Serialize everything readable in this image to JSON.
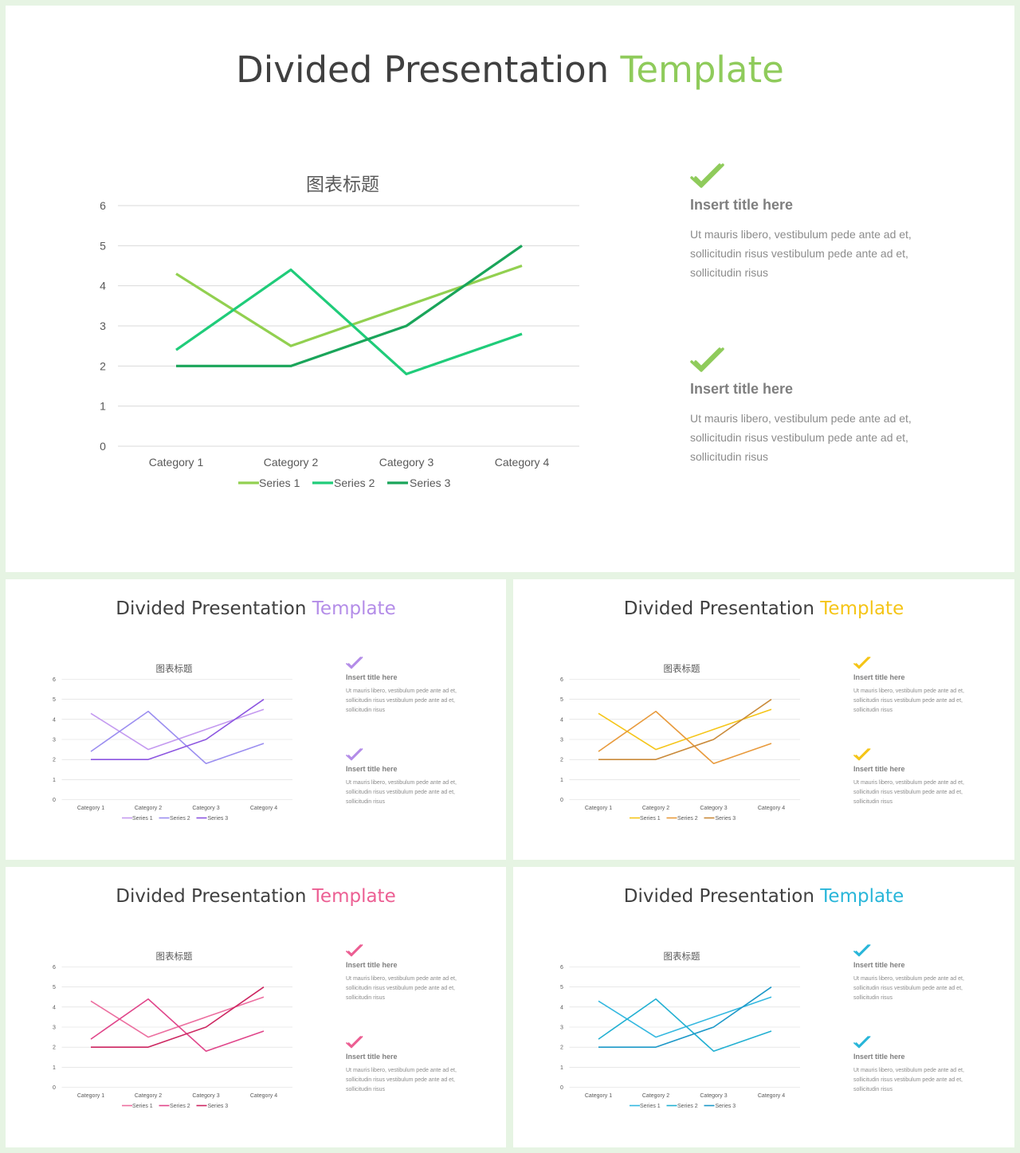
{
  "slides": [
    {
      "title_main": "Divided Presentation ",
      "title_accent": "Template",
      "accent": "#8fcb5b",
      "series_colors": [
        "#92d050",
        "#20cc7a",
        "#1aa55a"
      ],
      "check_color": "#8fcb5b",
      "features": [
        {
          "title": "Insert title here",
          "text": "Ut mauris libero, vestibulum pede ante ad et, sollicitudin risus vestibulum pede ante ad et, sollicitudin risus"
        },
        {
          "title": "Insert title here",
          "text": "Ut mauris libero, vestibulum pede ante ad et, sollicitudin risus vestibulum pede ante ad et, sollicitudin risus"
        }
      ]
    },
    {
      "title_main": "Divided Presentation ",
      "title_accent": "Template",
      "accent": "#b48de8",
      "series_colors": [
        "#c49af0",
        "#9b8ef0",
        "#8c55e0"
      ],
      "check_color": "#b48de8",
      "features": [
        {
          "title": "Insert title here",
          "text": "Ut mauris libero, vestibulum pede ante ad et, sollicitudin risus vestibulum pede ante ad et, sollicitudin risus"
        },
        {
          "title": "Insert title here",
          "text": "Ut mauris libero, vestibulum pede ante ad et, sollicitudin risus vestibulum pede ante ad et, sollicitudin risus"
        }
      ]
    },
    {
      "title_main": "Divided Presentation ",
      "title_accent": "Template",
      "accent": "#f5c518",
      "series_colors": [
        "#f5c518",
        "#e89a3c",
        "#c98a3a"
      ],
      "check_color": "#f5c518",
      "features": [
        {
          "title": "Insert title here",
          "text": "Ut mauris libero, vestibulum pede ante ad et, sollicitudin risus vestibulum pede ante ad et, sollicitudin risus"
        },
        {
          "title": "Insert title here",
          "text": "Ut mauris libero, vestibulum pede ante ad et, sollicitudin risus vestibulum pede ante ad et, sollicitudin risus"
        }
      ]
    },
    {
      "title_main": "Divided Presentation ",
      "title_accent": "Template",
      "accent": "#ec5f93",
      "series_colors": [
        "#ec6fa0",
        "#e0458a",
        "#cc2560"
      ],
      "check_color": "#ec5f93",
      "features": [
        {
          "title": "Insert title here",
          "text": "Ut mauris libero, vestibulum pede ante ad et, sollicitudin risus vestibulum pede ante ad et, sollicitudin risus"
        },
        {
          "title": "Insert title here",
          "text": "Ut mauris libero, vestibulum pede ante ad et, sollicitudin risus vestibulum pede ante ad et, sollicitudin risus"
        }
      ]
    },
    {
      "title_main": "Divided Presentation ",
      "title_accent": "Template",
      "accent": "#29b6d9",
      "series_colors": [
        "#34b8e0",
        "#22b0d2",
        "#1c98c8"
      ],
      "check_color": "#29b6d9",
      "features": [
        {
          "title": "Insert title here",
          "text": "Ut mauris libero, vestibulum pede ante ad et, sollicitudin risus vestibulum pede ante ad et, sollicitudin risus"
        },
        {
          "title": "Insert title here",
          "text": "Ut mauris libero, vestibulum pede ante ad et, sollicitudin risus vestibulum pede ante ad et, sollicitudin risus"
        }
      ]
    }
  ],
  "chart_data": {
    "type": "line",
    "title": "图表标题",
    "categories": [
      "Category 1",
      "Category 2",
      "Category 3",
      "Category 4"
    ],
    "series": [
      {
        "name": "Series 1",
        "values": [
          4.3,
          2.5,
          3.5,
          4.5
        ]
      },
      {
        "name": "Series 2",
        "values": [
          2.4,
          4.4,
          1.8,
          2.8
        ]
      },
      {
        "name": "Series 3",
        "values": [
          2,
          2,
          3,
          5
        ]
      }
    ],
    "yticks": [
      0,
      1,
      2,
      3,
      4,
      5,
      6
    ],
    "ylim": [
      0,
      6
    ],
    "grid": true,
    "legend": "bottom"
  }
}
